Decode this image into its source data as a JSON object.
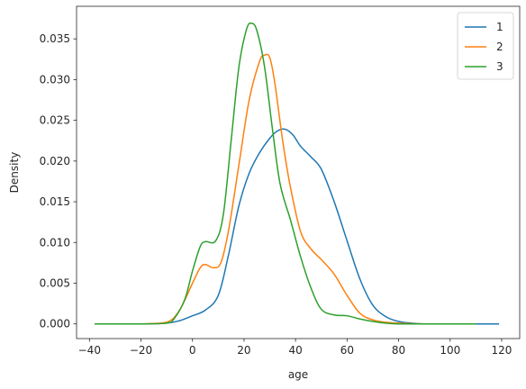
{
  "chart_data": {
    "type": "line",
    "title": "",
    "xlabel": "age",
    "ylabel": "Density",
    "xlim": [
      -45,
      127
    ],
    "ylim": [
      -0.0018,
      0.039
    ],
    "x_ticks": [
      -40,
      -20,
      0,
      20,
      40,
      60,
      80,
      100,
      120
    ],
    "y_ticks": [
      0.0,
      0.005,
      0.01,
      0.015,
      0.02,
      0.025,
      0.03,
      0.035
    ],
    "grid": false,
    "legend_position": "top-right",
    "series": [
      {
        "name": "1",
        "color": "#1f77b4",
        "x": [
          -38,
          -20,
          -10,
          -5,
          0,
          5,
          10,
          14,
          18,
          22,
          26,
          30,
          33,
          36,
          39,
          42,
          46,
          50,
          55,
          60,
          65,
          70,
          75,
          80,
          85,
          90,
          100,
          110,
          119
        ],
        "y": [
          0.0,
          0.0,
          0.0001,
          0.0004,
          0.001,
          0.0017,
          0.0035,
          0.0085,
          0.0145,
          0.0185,
          0.021,
          0.0228,
          0.0237,
          0.0239,
          0.0232,
          0.0218,
          0.0205,
          0.019,
          0.015,
          0.0102,
          0.0055,
          0.0023,
          0.0009,
          0.0003,
          0.0001,
          0.0,
          0.0,
          0.0,
          0.0
        ]
      },
      {
        "name": "2",
        "color": "#ff7f0e",
        "x": [
          -36,
          -20,
          -10,
          -5,
          0,
          3,
          5,
          8,
          11,
          14,
          18,
          22,
          26,
          28,
          30,
          32,
          35,
          38,
          42,
          46,
          50,
          55,
          60,
          65,
          70,
          75,
          80,
          90,
          100,
          110
        ],
        "y": [
          0.0,
          0.0,
          0.0002,
          0.0017,
          0.005,
          0.0069,
          0.0073,
          0.0069,
          0.0075,
          0.0115,
          0.0195,
          0.0275,
          0.0322,
          0.033,
          0.0327,
          0.0295,
          0.0225,
          0.0168,
          0.0113,
          0.0092,
          0.0079,
          0.0061,
          0.0035,
          0.0013,
          0.0005,
          0.0002,
          0.0001,
          0.0,
          0.0,
          0.0
        ]
      },
      {
        "name": "3",
        "color": "#2ca02c",
        "x": [
          -38,
          -20,
          -10,
          -7,
          -3,
          0,
          3,
          5,
          9,
          12,
          15,
          18,
          21,
          23,
          25,
          28,
          31,
          34,
          38,
          42,
          46,
          50,
          55,
          60,
          65,
          70,
          75,
          80,
          90,
          100,
          110
        ],
        "y": [
          0.0,
          0.0,
          0.0001,
          0.0007,
          0.003,
          0.0065,
          0.0095,
          0.0101,
          0.0102,
          0.0135,
          0.0225,
          0.0315,
          0.0362,
          0.0369,
          0.036,
          0.0315,
          0.024,
          0.0172,
          0.0128,
          0.0082,
          0.0044,
          0.0018,
          0.0011,
          0.001,
          0.0006,
          0.0003,
          0.0001,
          0.0,
          0.0,
          0.0,
          0.0
        ]
      }
    ]
  }
}
